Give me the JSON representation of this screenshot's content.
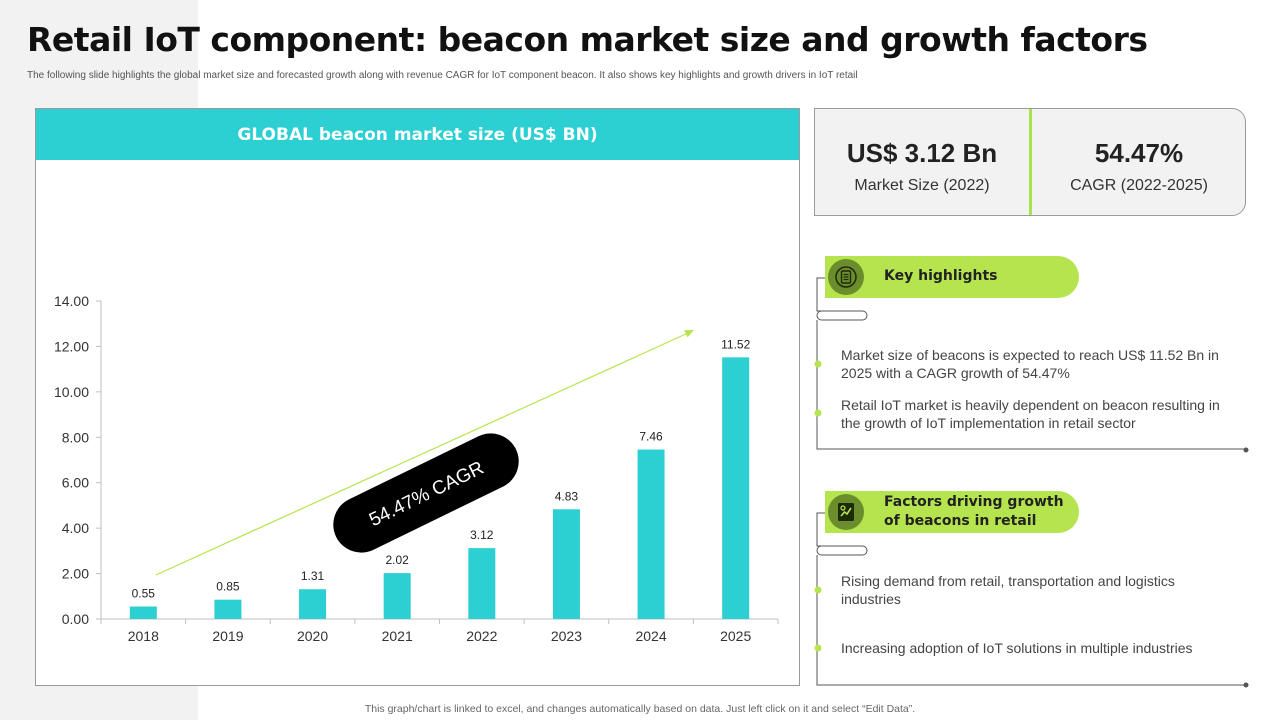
{
  "title": "Retail IoT component: beacon market size and growth factors",
  "subtitle": "The following slide highlights the global market size and forecasted growth along with revenue CAGR for IoT component beacon. It also shows key highlights and growth drivers in IoT retail",
  "chart_panel": {
    "header": "GLOBAL beacon market size (US$ BN)"
  },
  "chart_data": {
    "type": "bar",
    "title": "GLOBAL beacon market size (US$ BN)",
    "xlabel": "",
    "ylabel": "",
    "categories": [
      "2018",
      "2019",
      "2020",
      "2021",
      "2022",
      "2023",
      "2024",
      "2025"
    ],
    "values": [
      0.55,
      0.85,
      1.31,
      2.02,
      3.12,
      4.83,
      7.46,
      11.52
    ],
    "data_labels": [
      "0.55",
      "0.85",
      "1.31",
      "2.02",
      "3.12",
      "4.83",
      "7.46",
      "11.52"
    ],
    "ylim": [
      0,
      14
    ],
    "yticks": [
      "0.00",
      "2.00",
      "4.00",
      "6.00",
      "8.00",
      "10.00",
      "12.00",
      "14.00"
    ],
    "grid": false,
    "annotation": "54.47% CAGR",
    "colors": {
      "bar": "#2ccfd2",
      "arrow": "#b6e44f",
      "annotation_bg": "#000000"
    }
  },
  "kpis": [
    {
      "value": "US$ 3.12 Bn",
      "label": "Market Size (2022)"
    },
    {
      "value": "54.47%",
      "label": "CAGR (2022-2025)"
    }
  ],
  "sections": [
    {
      "title": "Key highlights",
      "icon": "document-list-icon",
      "bullets": [
        "Market size of beacons is expected to reach US$ 11.52 Bn in 2025 with a CAGR growth of 54.47%",
        "Retail IoT market is heavily dependent on beacon resulting in the growth of IoT implementation in retail sector"
      ]
    },
    {
      "title_line1": "Factors driving growth",
      "title_line2": "of beacons in retail",
      "icon": "growth-chart-icon",
      "bullets": [
        "Rising demand from retail, transportation and logistics industries",
        "Increasing adoption of IoT solutions in multiple industries"
      ]
    }
  ],
  "footer": "This graph/chart is linked to excel, and changes automatically based on data. Just left click on it and select “Edit Data”.",
  "colors": {
    "accent_teal": "#2ccfd2",
    "accent_green": "#b6e44f",
    "icon_green": "#6c8d2c"
  }
}
